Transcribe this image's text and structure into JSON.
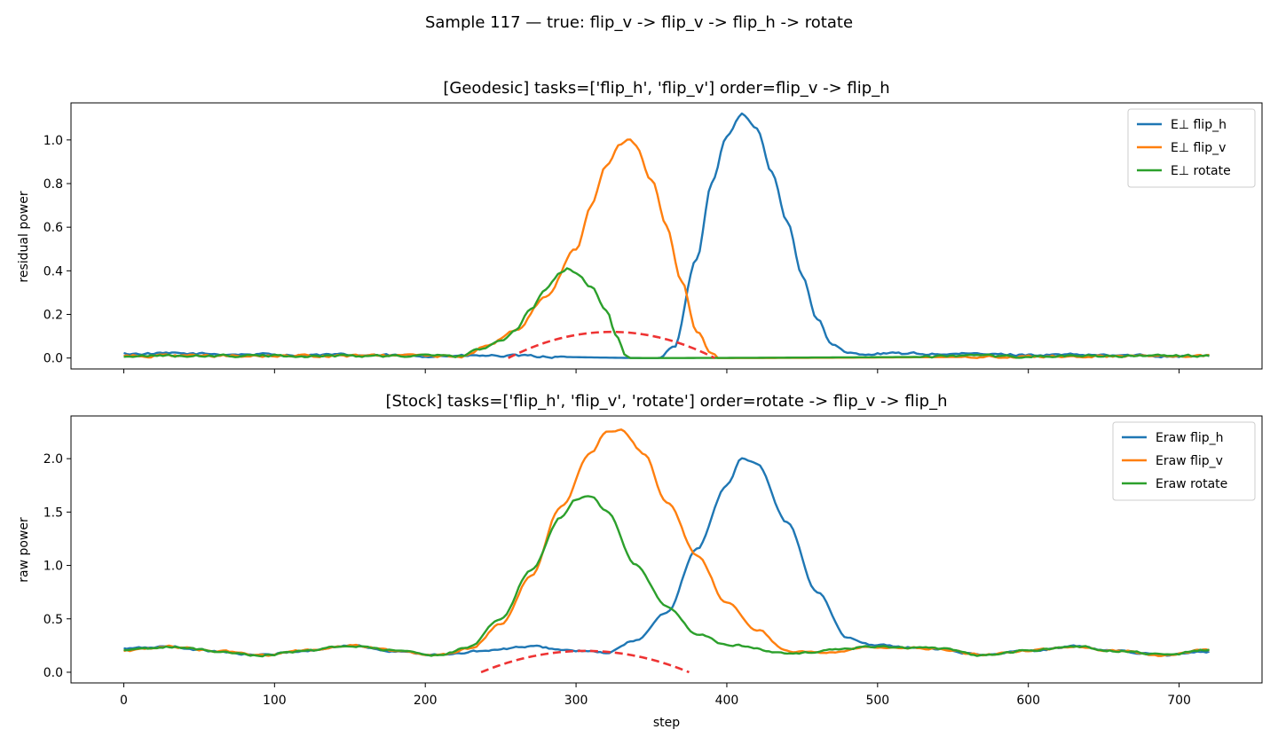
{
  "figure_title": "Sample 117 — true: flip_v -> flip_v -> flip_h -> rotate",
  "colors": {
    "flip_h": "#1f77b4",
    "flip_v": "#ff7f0e",
    "rotate": "#2ca02c",
    "envelope": "#ee3333"
  },
  "chart_data": [
    {
      "type": "line",
      "title": "[Geodesic] tasks=['flip_h', 'flip_v'] order=flip_v -> flip_h",
      "xlabel": "",
      "ylabel": "residual power",
      "xlim": [
        -35,
        755
      ],
      "ylim": [
        -0.05,
        1.17
      ],
      "xticks": [
        0,
        100,
        200,
        300,
        400,
        500,
        600,
        700
      ],
      "yticks": [
        "0.0",
        "0.2",
        "0.4",
        "0.6",
        "0.8",
        "1.0"
      ],
      "ytick_values": [
        0,
        0.2,
        0.4,
        0.6,
        0.8,
        1.0
      ],
      "legend_position": "upper right",
      "series": [
        {
          "name": "E⊥ flip_h",
          "key": "flip_h",
          "baseline": 0.01,
          "noise": 0.006,
          "zero_range": [
            230,
            470
          ],
          "points": [
            [
              0,
              0.02
            ],
            [
              230,
              0.01
            ],
            [
              355,
              0.0
            ],
            [
              365,
              0.05
            ],
            [
              380,
              0.45
            ],
            [
              390,
              0.8
            ],
            [
              400,
              1.02
            ],
            [
              410,
              1.12
            ],
            [
              420,
              1.05
            ],
            [
              430,
              0.85
            ],
            [
              440,
              0.62
            ],
            [
              450,
              0.38
            ],
            [
              460,
              0.18
            ],
            [
              470,
              0.06
            ],
            [
              480,
              0.02
            ],
            [
              490,
              0.02
            ],
            [
              720,
              0.01
            ]
          ]
        },
        {
          "name": "E⊥ flip_v",
          "key": "flip_v",
          "baseline": 0.01,
          "noise": 0.006,
          "zero_range": [
            395,
            720
          ],
          "points": [
            [
              0,
              0.01
            ],
            [
              225,
              0.01
            ],
            [
              240,
              0.05
            ],
            [
              260,
              0.13
            ],
            [
              280,
              0.28
            ],
            [
              300,
              0.5
            ],
            [
              310,
              0.7
            ],
            [
              320,
              0.88
            ],
            [
              330,
              0.98
            ],
            [
              335,
              1.0
            ],
            [
              340,
              0.97
            ],
            [
              350,
              0.82
            ],
            [
              360,
              0.6
            ],
            [
              370,
              0.35
            ],
            [
              380,
              0.12
            ],
            [
              390,
              0.02
            ],
            [
              395,
              0.0
            ],
            [
              720,
              0.01
            ]
          ]
        },
        {
          "name": "E⊥ rotate",
          "key": "rotate",
          "baseline": 0.01,
          "noise": 0.006,
          "zero_range": [
            335,
            720
          ],
          "points": [
            [
              0,
              0.01
            ],
            [
              225,
              0.01
            ],
            [
              235,
              0.04
            ],
            [
              250,
              0.08
            ],
            [
              260,
              0.13
            ],
            [
              270,
              0.22
            ],
            [
              280,
              0.32
            ],
            [
              290,
              0.39
            ],
            [
              295,
              0.41
            ],
            [
              300,
              0.39
            ],
            [
              310,
              0.33
            ],
            [
              320,
              0.22
            ],
            [
              327,
              0.1
            ],
            [
              333,
              0.01
            ],
            [
              335,
              0.0
            ],
            [
              720,
              0.01
            ]
          ]
        }
      ],
      "envelope": {
        "x_start": 255,
        "x_end": 392,
        "peak": 0.12
      }
    },
    {
      "type": "line",
      "title": "[Stock] tasks=['flip_h', 'flip_v', 'rotate'] order=rotate -> flip_v -> flip_h",
      "xlabel": "step",
      "ylabel": "raw power",
      "xlim": [
        -35,
        755
      ],
      "ylim": [
        -0.1,
        2.4
      ],
      "xticks": [
        0,
        100,
        200,
        300,
        400,
        500,
        600,
        700
      ],
      "yticks": [
        "0.0",
        "0.5",
        "1.0",
        "1.5",
        "2.0"
      ],
      "ytick_values": [
        0,
        0.5,
        1.0,
        1.5,
        2.0
      ],
      "legend_position": "upper right",
      "series": [
        {
          "name": "Eraw flip_h",
          "key": "flip_h",
          "noise": 0.01,
          "points": [
            [
              0,
              0.22
            ],
            [
              30,
              0.24
            ],
            [
              60,
              0.2
            ],
            [
              90,
              0.16
            ],
            [
              120,
              0.2
            ],
            [
              150,
              0.25
            ],
            [
              180,
              0.2
            ],
            [
              210,
              0.16
            ],
            [
              240,
              0.2
            ],
            [
              270,
              0.24
            ],
            [
              300,
              0.2
            ],
            [
              320,
              0.18
            ],
            [
              340,
              0.3
            ],
            [
              360,
              0.55
            ],
            [
              380,
              1.15
            ],
            [
              400,
              1.75
            ],
            [
              410,
              2.0
            ],
            [
              420,
              1.95
            ],
            [
              440,
              1.4
            ],
            [
              460,
              0.75
            ],
            [
              480,
              0.32
            ],
            [
              500,
              0.25
            ],
            [
              540,
              0.22
            ],
            [
              570,
              0.16
            ],
            [
              600,
              0.2
            ],
            [
              630,
              0.24
            ],
            [
              660,
              0.2
            ],
            [
              690,
              0.16
            ],
            [
              720,
              0.19
            ]
          ]
        },
        {
          "name": "Eraw flip_v",
          "key": "flip_v",
          "noise": 0.01,
          "points": [
            [
              0,
              0.2
            ],
            [
              30,
              0.24
            ],
            [
              60,
              0.2
            ],
            [
              90,
              0.16
            ],
            [
              120,
              0.2
            ],
            [
              150,
              0.25
            ],
            [
              180,
              0.2
            ],
            [
              210,
              0.16
            ],
            [
              230,
              0.22
            ],
            [
              250,
              0.45
            ],
            [
              270,
              0.9
            ],
            [
              290,
              1.55
            ],
            [
              310,
              2.05
            ],
            [
              320,
              2.25
            ],
            [
              330,
              2.27
            ],
            [
              345,
              2.05
            ],
            [
              360,
              1.6
            ],
            [
              380,
              1.1
            ],
            [
              400,
              0.65
            ],
            [
              420,
              0.4
            ],
            [
              440,
              0.2
            ],
            [
              460,
              0.18
            ],
            [
              500,
              0.24
            ],
            [
              540,
              0.22
            ],
            [
              570,
              0.16
            ],
            [
              600,
              0.2
            ],
            [
              630,
              0.24
            ],
            [
              660,
              0.2
            ],
            [
              690,
              0.16
            ],
            [
              720,
              0.21
            ]
          ]
        },
        {
          "name": "Eraw rotate",
          "key": "rotate",
          "noise": 0.01,
          "points": [
            [
              0,
              0.2
            ],
            [
              30,
              0.24
            ],
            [
              60,
              0.2
            ],
            [
              90,
              0.16
            ],
            [
              120,
              0.2
            ],
            [
              150,
              0.25
            ],
            [
              180,
              0.2
            ],
            [
              210,
              0.16
            ],
            [
              230,
              0.24
            ],
            [
              250,
              0.5
            ],
            [
              270,
              0.95
            ],
            [
              290,
              1.45
            ],
            [
              300,
              1.62
            ],
            [
              310,
              1.65
            ],
            [
              320,
              1.5
            ],
            [
              340,
              1.0
            ],
            [
              360,
              0.62
            ],
            [
              380,
              0.36
            ],
            [
              400,
              0.26
            ],
            [
              440,
              0.18
            ],
            [
              500,
              0.24
            ],
            [
              540,
              0.22
            ],
            [
              570,
              0.16
            ],
            [
              600,
              0.2
            ],
            [
              630,
              0.24
            ],
            [
              660,
              0.2
            ],
            [
              690,
              0.16
            ],
            [
              720,
              0.21
            ]
          ]
        }
      ],
      "envelope": {
        "x_start": 237,
        "x_end": 375,
        "peak": 0.2
      }
    }
  ]
}
